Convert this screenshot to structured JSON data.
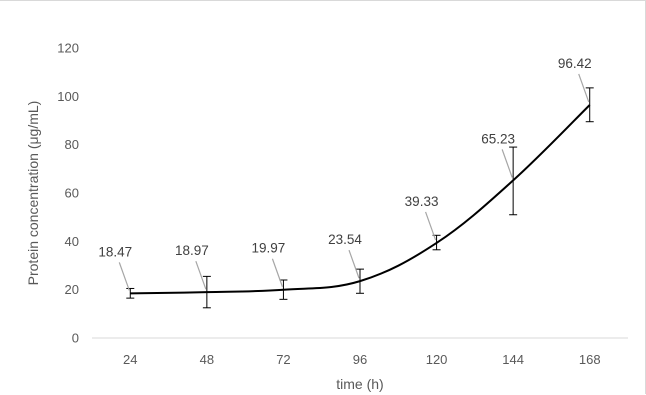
{
  "chart_data": {
    "type": "line",
    "xlabel": "time (h)",
    "ylabel": "Protein concentration (μg/mL)",
    "categories": [
      "24",
      "48",
      "72",
      "96",
      "120",
      "144",
      "168"
    ],
    "series": [
      {
        "values": [
          18.47,
          18.97,
          19.97,
          23.54,
          39.33,
          65.23,
          96.42
        ],
        "error_low": [
          16.5,
          12.5,
          16.0,
          18.5,
          36.5,
          51.0,
          89.5
        ],
        "error_high": [
          20.5,
          25.5,
          24.0,
          28.5,
          42.5,
          79.0,
          103.5
        ],
        "data_labels": [
          "18.47",
          "18.97",
          "19.97",
          "23.54",
          "39.33",
          "65.23",
          "96.42"
        ]
      }
    ],
    "yticks": [
      "0",
      "20",
      "40",
      "60",
      "80",
      "100",
      "120"
    ],
    "ylim": [
      0,
      120
    ],
    "grid": false,
    "legend": "none",
    "colors": {
      "line": "#000000",
      "leader": "#a6a6a6",
      "axis": "#d9d9d9",
      "text": "#595959"
    }
  }
}
